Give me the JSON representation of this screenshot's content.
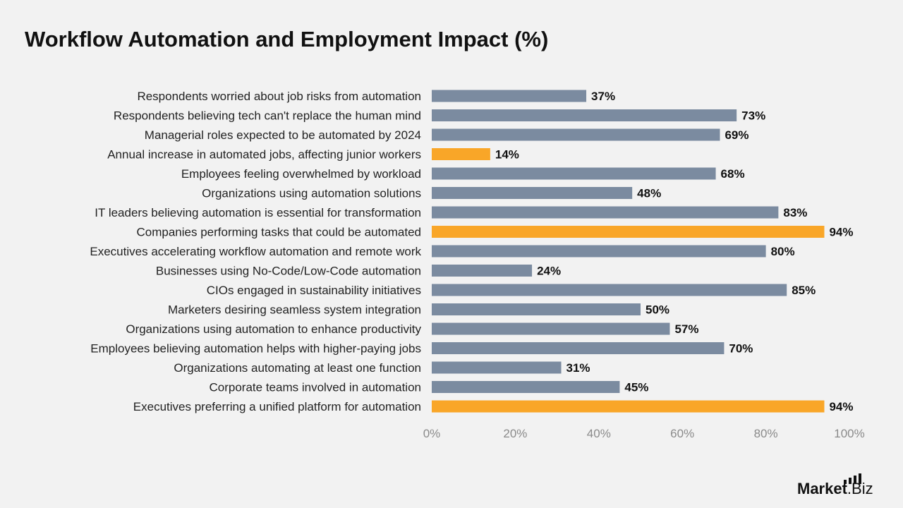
{
  "title": "Workflow Automation and Employment Impact (%)",
  "logo": {
    "brand": "Market",
    "suffix": ".Biz"
  },
  "colors": {
    "default_bar": "#7b8ba0",
    "highlight_bar": "#f9a628",
    "background": "#f2f2f2"
  },
  "chart_data": {
    "type": "bar",
    "orientation": "horizontal",
    "categories": [
      "Respondents worried about job risks from automation",
      "Respondents believing tech can't replace the human mind",
      "Managerial roles expected to be automated by 2024",
      "Annual increase in automated jobs, affecting junior workers",
      "Employees feeling overwhelmed by workload",
      "Organizations using automation solutions",
      "IT leaders believing automation is essential for transformation",
      "Companies performing tasks that could be automated",
      "Executives accelerating workflow automation and remote work",
      "Businesses using No-Code/Low-Code automation",
      "CIOs engaged in sustainability initiatives",
      "Marketers desiring seamless system integration",
      "Organizations using automation to enhance productivity",
      "Employees believing automation helps with higher-paying jobs",
      "Organizations automating at least one function",
      "Corporate teams involved in automation",
      "Executives preferring a unified platform for automation"
    ],
    "values": [
      37,
      73,
      69,
      14,
      68,
      48,
      83,
      94,
      80,
      24,
      85,
      50,
      57,
      70,
      31,
      45,
      94
    ],
    "data_labels": [
      "37%",
      "73%",
      "69%",
      "14%",
      "68%",
      "48%",
      "83%",
      "94%",
      "80%",
      "24%",
      "85%",
      "50%",
      "57%",
      "70%",
      "31%",
      "45%",
      "94%"
    ],
    "highlighted": [
      false,
      false,
      false,
      true,
      false,
      false,
      false,
      true,
      false,
      false,
      false,
      false,
      false,
      false,
      false,
      false,
      true
    ],
    "xlim": [
      0,
      100
    ],
    "xticks": [
      0,
      20,
      40,
      60,
      80,
      100
    ],
    "xtick_labels": [
      "0%",
      "20%",
      "40%",
      "60%",
      "80%",
      "100%"
    ],
    "xlabel": "",
    "ylabel": "",
    "grid": false,
    "legend": "none"
  }
}
